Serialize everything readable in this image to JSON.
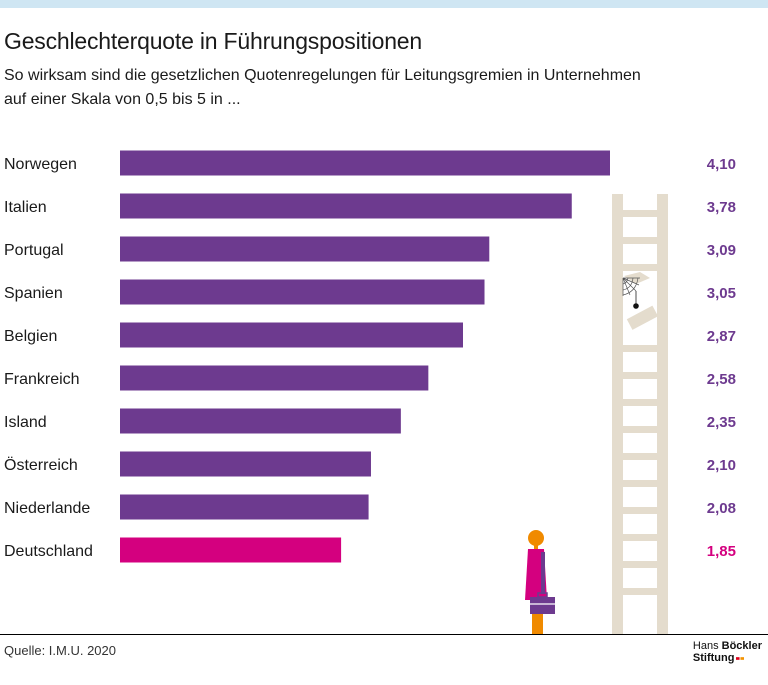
{
  "title": "Geschlechterquote in Führungspositionen",
  "subtitle_line1": "So wirksam sind die gesetzlichen Quotenregelungen für Leitungsgremien in Unternehmen",
  "subtitle_line2": "auf einer Skala von 0,5 bis 5 in ...",
  "source": "Quelle: I.M.U. 2020",
  "logo": {
    "line1_a": "Hans ",
    "line1_b": "Böckler",
    "line2": "Stiftung"
  },
  "colors": {
    "bar": "#6d3a8f",
    "highlight": "#d4007f",
    "ladder": "#e4dccd",
    "person": "#f08a00"
  },
  "chart_data": {
    "type": "bar",
    "orientation": "horizontal",
    "title": "Geschlechterquote in Führungspositionen",
    "xlabel": "",
    "ylabel": "",
    "xlim": [
      0,
      4.1
    ],
    "categories": [
      "Norwegen",
      "Italien",
      "Portugal",
      "Spanien",
      "Belgien",
      "Frankreich",
      "Island",
      "Österreich",
      "Niederlande",
      "Deutschland"
    ],
    "values": [
      4.1,
      3.78,
      3.09,
      3.05,
      2.87,
      2.58,
      2.35,
      2.1,
      2.08,
      1.85
    ],
    "value_labels": [
      "4,10",
      "3,78",
      "3,09",
      "3,05",
      "2,87",
      "2,58",
      "2,35",
      "2,10",
      "2,08",
      "1,85"
    ],
    "highlight": "Deutschland"
  }
}
